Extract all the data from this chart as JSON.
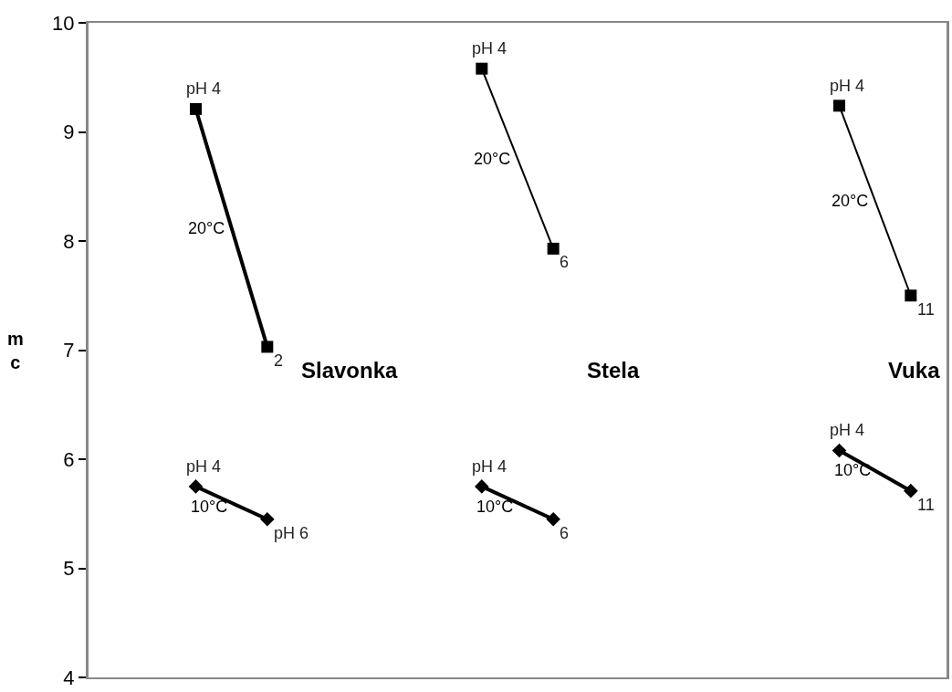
{
  "chart_data": {
    "type": "line",
    "ylabel": "mc",
    "categories": [
      null,
      null,
      null,
      null,
      null,
      null,
      null,
      null,
      null,
      null,
      null,
      null
    ],
    "ylim": [
      4,
      10
    ],
    "yticks": [
      4,
      5,
      6,
      7,
      8,
      9,
      10
    ],
    "tick_labels": "y",
    "series": [
      {
        "name": "20°C",
        "color": "#000000",
        "marker": "square",
        "values": [
          null,
          9.21,
          7.03,
          null,
          null,
          null,
          null,
          null,
          null,
          null,
          null,
          null
        ]
      },
      {
        "name": "10°C",
        "color": "#000000",
        "marker": "diamond",
        "values": [
          null,
          5.75,
          5.45,
          null,
          null,
          null,
          null,
          null,
          null,
          null,
          null,
          null
        ]
      },
      {
        "name": "20°C",
        "color": "#000000",
        "marker": "square",
        "values": [
          null,
          null,
          null,
          null,
          null,
          9.58,
          7.93,
          null,
          null,
          null,
          null,
          null
        ]
      },
      {
        "name": "10°C",
        "color": "#000000",
        "marker": "diamond",
        "values": [
          null,
          null,
          null,
          null,
          null,
          5.75,
          5.45,
          null,
          null,
          null,
          null,
          null
        ]
      },
      {
        "name": "20°C",
        "color": "#000000",
        "marker": "square",
        "values": [
          null,
          null,
          null,
          null,
          null,
          null,
          null,
          null,
          null,
          null,
          9.24,
          7.5
        ]
      },
      {
        "name": "10°C",
        "color": "#000000",
        "marker": "diamond",
        "values": [
          null,
          null,
          null,
          null,
          null,
          null,
          null,
          null,
          null,
          null,
          6.08,
          5.71
        ]
      }
    ],
    "annotations": [
      {
        "text": "pH 4",
        "y": 9.21
      },
      {
        "text": "pH 4",
        "y": 5.75
      },
      {
        "text": "pH 4",
        "y": 9.58
      },
      {
        "text": "pH 4",
        "y": 5.75
      },
      {
        "text": "pH 4",
        "y": 9.24
      },
      {
        "text": "pH 4",
        "y": 6.08
      },
      "2",
      "pH 6",
      "6",
      "6",
      "11",
      "11",
      "Slavonka",
      "Stela",
      "Vuka"
    ]
  }
}
